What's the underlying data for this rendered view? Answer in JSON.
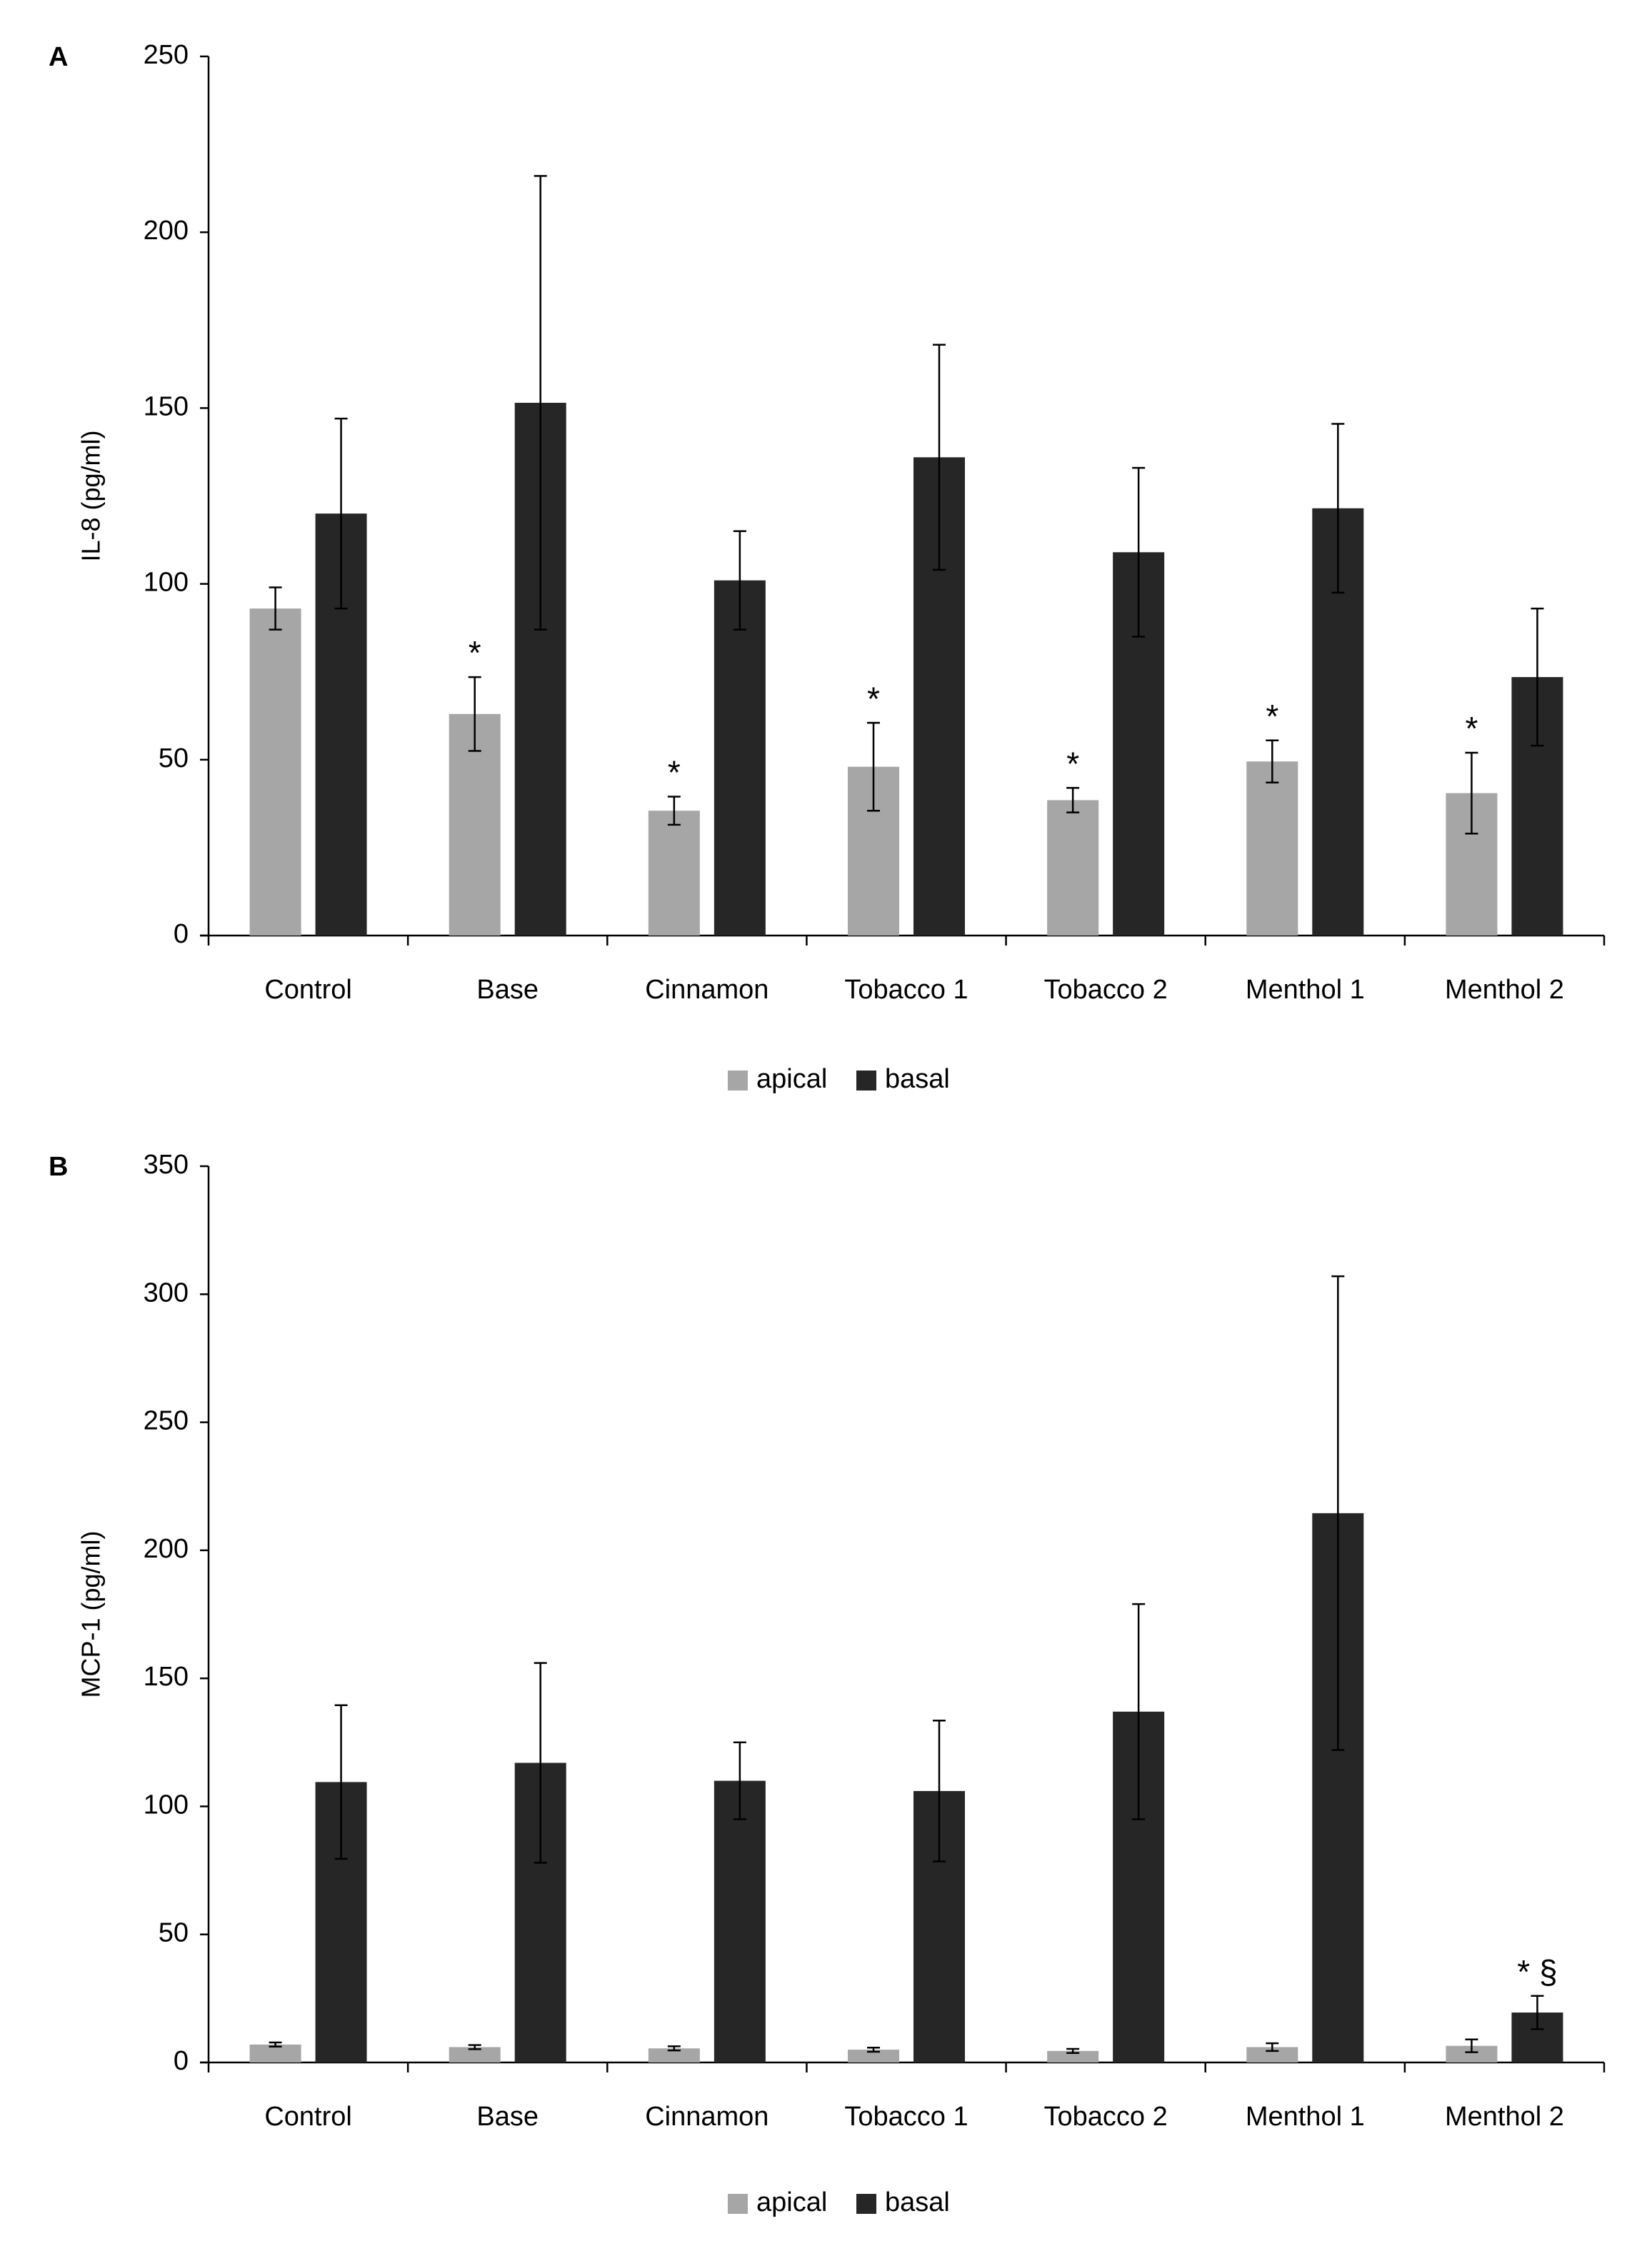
{
  "colors": {
    "apical": "#a6a6a6",
    "basal": "#262626",
    "axis": "#000000",
    "text": "#000000"
  },
  "chart_data": [
    {
      "panel_label": "A",
      "type": "bar",
      "title": "",
      "xlabel": "",
      "ylabel": "IL-8  (pg/ml)",
      "ylim": [
        0,
        250
      ],
      "yticks": [
        0,
        50,
        100,
        150,
        200,
        250
      ],
      "grid": false,
      "legend_position": "bottom-center",
      "categories": [
        "Control",
        "Base",
        "Cinnamon",
        "Tobacco 1",
        "Tobacco 2",
        "Menthol 1",
        "Menthol 2"
      ],
      "series": [
        {
          "name": "apical",
          "color": "#a6a6a6",
          "values": [
            93,
            63,
            35.5,
            48,
            38.5,
            49.5,
            40.5
          ],
          "errors": [
            6,
            10.5,
            4,
            12.5,
            3.5,
            6,
            11.5
          ]
        },
        {
          "name": "basal",
          "color": "#262626",
          "values": [
            120,
            151.5,
            101,
            136,
            109,
            121.5,
            73.5
          ],
          "errors": [
            27,
            64.5,
            14,
            32,
            24,
            24,
            19.5
          ]
        }
      ],
      "annotations": [
        {
          "category_index": 1,
          "series": "apical",
          "text": "*"
        },
        {
          "category_index": 2,
          "series": "apical",
          "text": "*"
        },
        {
          "category_index": 3,
          "series": "apical",
          "text": "*"
        },
        {
          "category_index": 4,
          "series": "apical",
          "text": "*"
        },
        {
          "category_index": 5,
          "series": "apical",
          "text": "*"
        },
        {
          "category_index": 6,
          "series": "apical",
          "text": "*"
        }
      ]
    },
    {
      "panel_label": "B",
      "type": "bar",
      "title": "",
      "xlabel": "",
      "ylabel": "MCP-1  (pg/ml)",
      "ylim": [
        0,
        350
      ],
      "yticks": [
        0,
        50,
        100,
        150,
        200,
        250,
        300,
        350
      ],
      "grid": false,
      "legend_position": "bottom-center",
      "categories": [
        "Control",
        "Base",
        "Cinnamon",
        "Tobacco 1",
        "Tobacco 2",
        "Menthol 1",
        "Menthol 2"
      ],
      "series": [
        {
          "name": "apical",
          "color": "#a6a6a6",
          "values": [
            7,
            6,
            5.5,
            5,
            4.5,
            6,
            6.5
          ],
          "errors": [
            0.8,
            0.8,
            0.8,
            0.8,
            0.8,
            1.5,
            2.5
          ]
        },
        {
          "name": "basal",
          "color": "#262626",
          "values": [
            109.5,
            117,
            110,
            106,
            137,
            214.5,
            19.5
          ],
          "errors": [
            30,
            39,
            15,
            27.5,
            42,
            92.5,
            6.5
          ]
        }
      ],
      "annotations": [
        {
          "category_index": 6,
          "series": "basal",
          "text": "* §"
        }
      ]
    }
  ]
}
